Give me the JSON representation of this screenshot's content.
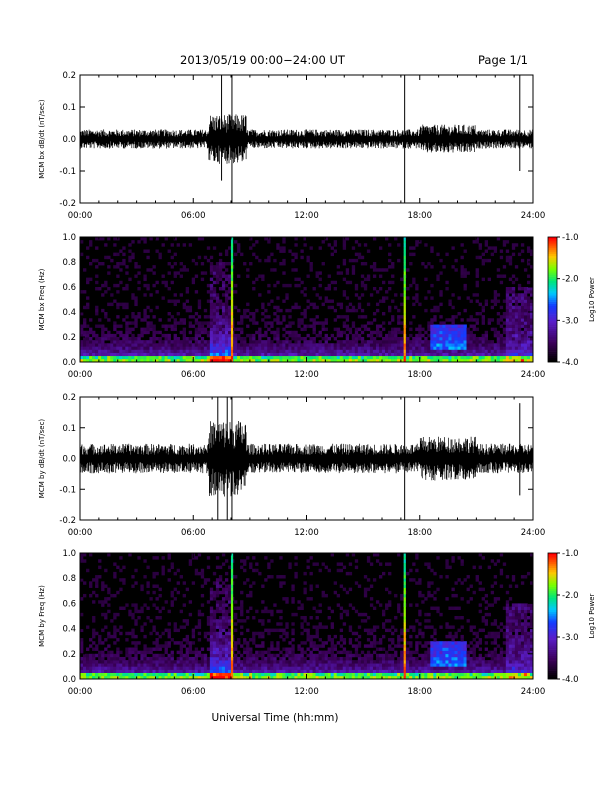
{
  "header": {
    "title": "2013/05/19  00:00−24:00 UT",
    "page": "Page 1/1"
  },
  "xlabel": "Universal Time (hh:mm)",
  "chart_data": [
    {
      "type": "line",
      "ylabel": "MCM bx dB/dt (nT/sec)",
      "xlim": [
        0,
        24
      ],
      "ylim": [
        -0.2,
        0.2
      ],
      "x_ticks": [
        "00:00",
        "06:00",
        "12:00",
        "18:00",
        "24:00"
      ],
      "y_ticks": [
        "-0.2",
        "-0.1",
        "0.0",
        "0.1",
        "0.2"
      ],
      "noise_amplitude": 0.025,
      "spikes": [
        {
          "x": 7.5,
          "min": -0.13,
          "max": 0.2
        },
        {
          "x": 8.05,
          "min": -0.2,
          "max": 0.2
        },
        {
          "x": 17.2,
          "min": -0.2,
          "max": 0.2
        },
        {
          "x": 23.3,
          "min": -0.1,
          "max": 0.2
        }
      ]
    },
    {
      "type": "heatmap",
      "ylabel": "MCM bx Freq (Hz)",
      "xlim": [
        0,
        24
      ],
      "ylim": [
        0,
        1.0
      ],
      "x_ticks": [
        "00:00",
        "06:00",
        "12:00",
        "18:00",
        "24:00"
      ],
      "y_ticks": [
        "0.0",
        "0.2",
        "0.4",
        "0.6",
        "0.8",
        "1.0"
      ],
      "colorbar": {
        "label": "Log10 Power",
        "range": [
          -4.0,
          -1.0
        ],
        "ticks": [
          "-1.0",
          "-2.0",
          "-3.0",
          "-4.0"
        ]
      },
      "features": [
        {
          "desc": "broadband burst",
          "x": [
            6.8,
            8.0
          ],
          "freq_max": 0.8
        },
        {
          "desc": "vertical line",
          "x": 8.05
        },
        {
          "desc": "vertical line",
          "x": 17.2
        },
        {
          "desc": "Pc1 band",
          "x": [
            18.5,
            20.5
          ],
          "freq": [
            0.1,
            0.3
          ]
        }
      ]
    },
    {
      "type": "line",
      "ylabel": "MCM by dB/dt (nT/sec)",
      "xlim": [
        0,
        24
      ],
      "ylim": [
        -0.2,
        0.2
      ],
      "x_ticks": [
        "00:00",
        "06:00",
        "12:00",
        "18:00",
        "24:00"
      ],
      "y_ticks": [
        "-0.2",
        "-0.1",
        "0.0",
        "0.1",
        "0.2"
      ],
      "noise_amplitude": 0.04,
      "spikes": [
        {
          "x": 7.3,
          "min": -0.2,
          "max": 0.2
        },
        {
          "x": 7.8,
          "min": -0.2,
          "max": 0.2
        },
        {
          "x": 8.05,
          "min": -0.2,
          "max": 0.2
        },
        {
          "x": 17.2,
          "min": -0.2,
          "max": 0.2
        },
        {
          "x": 23.3,
          "min": -0.12,
          "max": 0.18
        }
      ]
    },
    {
      "type": "heatmap",
      "ylabel": "MCM by Freq (Hz)",
      "xlim": [
        0,
        24
      ],
      "ylim": [
        0,
        1.0
      ],
      "x_ticks": [
        "00:00",
        "06:00",
        "12:00",
        "18:00",
        "24:00"
      ],
      "y_ticks": [
        "0.0",
        "0.2",
        "0.4",
        "0.6",
        "0.8",
        "1.0"
      ],
      "colorbar": {
        "label": "Log10 Power",
        "range": [
          -4.0,
          -1.0
        ],
        "ticks": [
          "-1.0",
          "-2.0",
          "-3.0",
          "-4.0"
        ]
      },
      "features": [
        {
          "desc": "broadband burst",
          "x": [
            6.8,
            8.0
          ],
          "freq_max": 0.8
        },
        {
          "desc": "vertical line",
          "x": 8.05
        },
        {
          "desc": "vertical line",
          "x": 17.2
        },
        {
          "desc": "Pc1 band",
          "x": [
            18.5,
            20.5
          ],
          "freq": [
            0.1,
            0.3
          ]
        }
      ]
    }
  ]
}
